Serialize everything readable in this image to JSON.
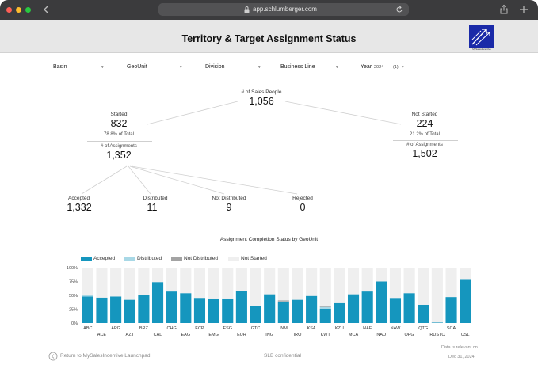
{
  "browser": {
    "url": "app.schlumberger.com"
  },
  "header": {
    "title": "Territory & Target Assignment Status",
    "logo_text": "MySalesIncentive"
  },
  "filters": {
    "basin": "Basin",
    "geounit": "GeoUnit",
    "division": "Division",
    "business_line": "Business Line",
    "year_label": "Year",
    "year_value": "2024",
    "year_count": "(1)",
    "caret": "▾"
  },
  "tree": {
    "root": {
      "label": "# of Sales People",
      "value": "1,056"
    },
    "started": {
      "label": "Started",
      "value": "832",
      "pct": "78.8% of Total",
      "assign_label": "# of Assignments",
      "assign_value": "1,352"
    },
    "not_started": {
      "label": "Not Started",
      "value": "224",
      "pct": "21.2% of Total",
      "assign_label": "# of Assignments",
      "assign_value": "1,502"
    },
    "accepted": {
      "label": "Accepted",
      "value": "1,332"
    },
    "distributed": {
      "label": "Distributed",
      "value": "11"
    },
    "not_distributed": {
      "label": "Not Distributed",
      "value": "9"
    },
    "rejected": {
      "label": "Rejected",
      "value": "0"
    }
  },
  "colors": {
    "accepted": "#1596be",
    "distributed": "#a8d8e6",
    "not_distributed": "#a3a3a3",
    "not_started": "#efefef"
  },
  "chart_data": {
    "type": "bar",
    "stacked": true,
    "percent": true,
    "title": "Assignment Completion Status by GeoUnit",
    "legend": [
      "Accepted",
      "Distributed",
      "Not Distributed",
      "Not Started"
    ],
    "yticks": [
      "100%",
      "75%",
      "50%",
      "25%",
      "0%"
    ],
    "ylim": [
      0,
      100
    ],
    "categories": [
      "ABC",
      "ACE",
      "APG",
      "AZT",
      "BRZ",
      "CAL",
      "CHG",
      "EAG",
      "ECP",
      "EMG",
      "ESG",
      "EUR",
      "GTC",
      "ING",
      "INM",
      "IRQ",
      "KSA",
      "KWT",
      "KZU",
      "MCA",
      "NAF",
      "NAO",
      "NAW",
      "OPG",
      "QTG",
      "RUSTC",
      "SCA",
      "USL"
    ],
    "series": [
      {
        "name": "Accepted",
        "values": [
          48,
          46,
          48,
          42,
          51,
          74,
          57,
          54,
          44,
          43,
          43,
          58,
          30,
          52,
          38,
          42,
          49,
          26,
          36,
          52,
          57,
          75,
          44,
          54,
          33,
          1,
          47,
          78
        ]
      },
      {
        "name": "Distributed",
        "values": [
          2,
          0,
          0,
          0,
          0,
          0,
          0,
          0,
          1,
          0,
          0,
          0,
          0,
          0,
          1,
          0,
          0,
          3,
          0,
          0,
          1,
          0,
          0,
          0,
          0,
          0,
          0,
          0
        ]
      },
      {
        "name": "Not Distributed",
        "values": [
          1,
          0,
          0,
          0,
          0,
          0,
          0,
          0,
          0,
          0,
          0,
          0,
          0,
          0,
          2,
          0,
          0,
          1,
          0,
          0,
          0,
          0,
          0,
          0,
          0,
          0,
          0,
          0
        ]
      },
      {
        "name": "Not Started",
        "values": [
          49,
          54,
          52,
          58,
          49,
          26,
          43,
          46,
          55,
          57,
          57,
          42,
          70,
          48,
          59,
          58,
          51,
          70,
          64,
          48,
          42,
          25,
          56,
          46,
          67,
          99,
          53,
          22
        ]
      }
    ]
  },
  "footer": {
    "back_link": "Return to MySalesIncentive Launchpad",
    "confidential": "SLB confidential",
    "note_line1": "Data is relevant on",
    "note_line2": "Dec 31, 2024"
  }
}
